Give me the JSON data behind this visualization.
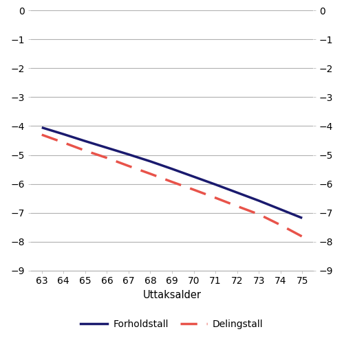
{
  "forholdstall_x": [
    63,
    64,
    65,
    66,
    67,
    68,
    69,
    70,
    71,
    72,
    73,
    74,
    75
  ],
  "forholdstall_y": [
    -4.05,
    -4.28,
    -4.52,
    -4.75,
    -4.98,
    -5.22,
    -5.48,
    -5.75,
    -6.02,
    -6.3,
    -6.58,
    -6.88,
    -7.18
  ],
  "delingstall_x": [
    63,
    64,
    65,
    66,
    67,
    68,
    69,
    70,
    71,
    72,
    73,
    74,
    75
  ],
  "delingstall_y": [
    -4.3,
    -4.57,
    -4.85,
    -5.1,
    -5.38,
    -5.65,
    -5.93,
    -6.2,
    -6.48,
    -6.77,
    -7.05,
    -7.42,
    -7.82
  ],
  "forholdstall_color": "#1a1a6e",
  "delingstall_color": "#e8534a",
  "forholdstall_label": "Forholdstall",
  "delingstall_label": "Delingstall",
  "xlabel": "Uttaksalder",
  "ylim": [
    -9,
    0
  ],
  "xlim": [
    62.5,
    75.5
  ],
  "yticks": [
    0,
    -1,
    -2,
    -3,
    -4,
    -5,
    -6,
    -7,
    -8,
    -9
  ],
  "xticks": [
    63,
    64,
    65,
    66,
    67,
    68,
    69,
    70,
    71,
    72,
    73,
    74,
    75
  ],
  "background_color": "#ffffff",
  "grid_color": "#b0b0b0",
  "line_width": 2.5,
  "dash_pattern": [
    7,
    4
  ],
  "legend_fontsize": 10,
  "tick_fontsize": 10,
  "xlabel_fontsize": 10.5
}
